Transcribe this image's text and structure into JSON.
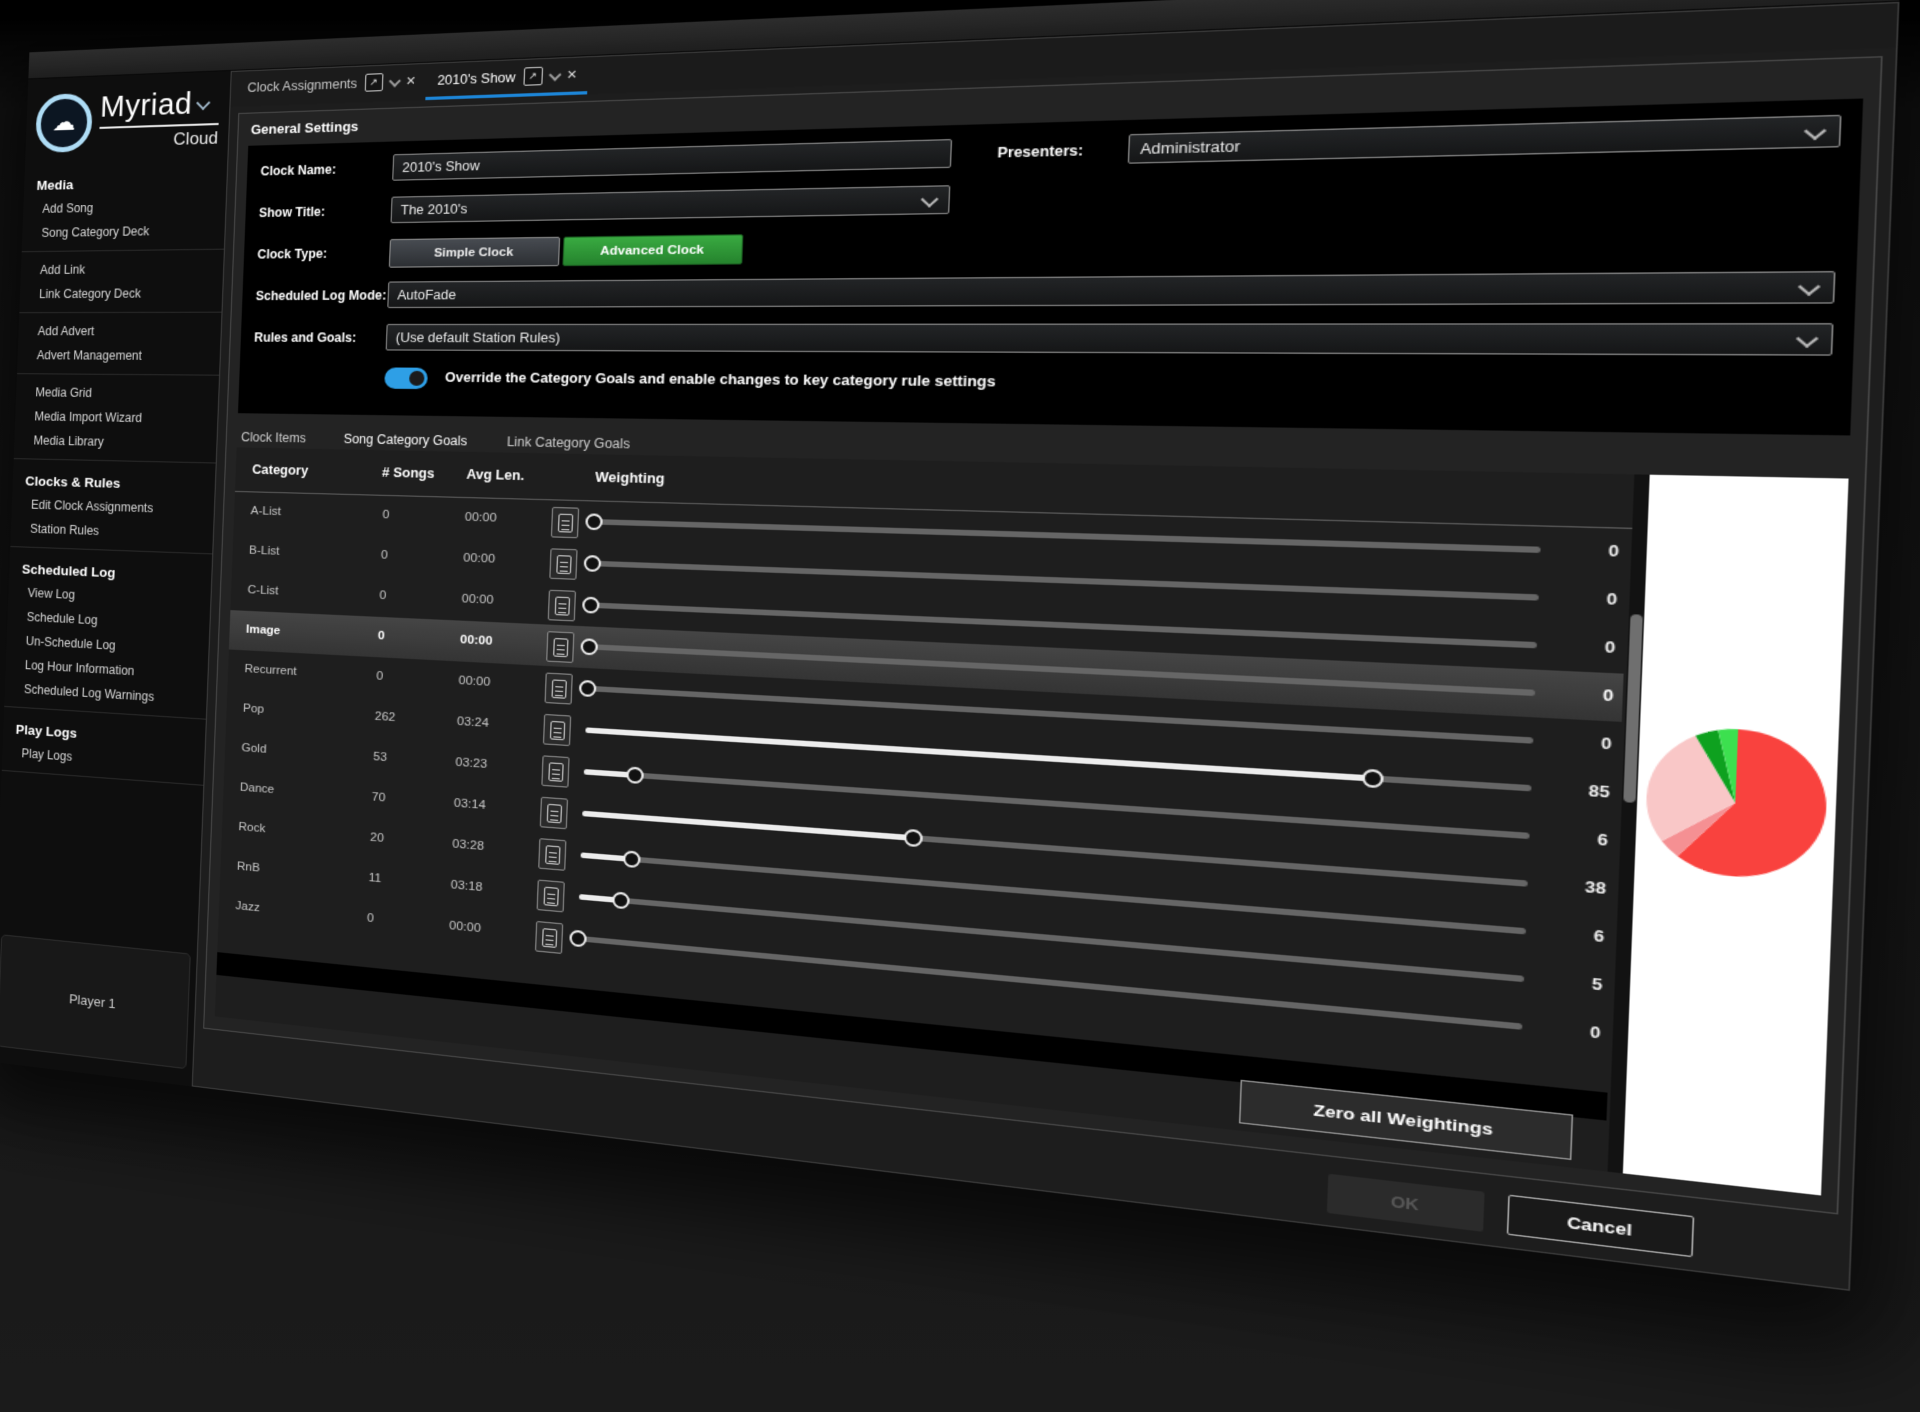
{
  "brand": {
    "name": "Myriad",
    "sub": "Cloud"
  },
  "icons": {
    "close": "×",
    "popout": "↗",
    "logo_cloud": "☁"
  },
  "sidebar": {
    "sections": [
      {
        "heading": "Media",
        "groups": [
          [
            "Add Song",
            "Song Category Deck"
          ],
          [
            "Add Link",
            "Link Category Deck"
          ],
          [
            "Add Advert",
            "Advert Management"
          ],
          [
            "Media Grid",
            "Media Import Wizard",
            "Media Library"
          ]
        ]
      },
      {
        "heading": "Clocks & Rules",
        "groups": [
          [
            "Edit Clock Assignments",
            "Station Rules"
          ]
        ]
      },
      {
        "heading": "Scheduled Log",
        "groups": [
          [
            "View Log",
            "Schedule Log",
            "Un-Schedule Log",
            "Log Hour Information",
            "Scheduled Log Warnings"
          ]
        ]
      },
      {
        "heading": "Play Logs",
        "groups": [
          [
            "Play Logs"
          ]
        ]
      }
    ],
    "player_label": "Player 1"
  },
  "tabs": [
    {
      "label": "Clock Assignments"
    },
    {
      "label": "2010's Show"
    }
  ],
  "general": {
    "title": "General Settings",
    "clock_name_label": "Clock Name:",
    "clock_name": "2010's Show",
    "presenters_label": "Presenters:",
    "presenters": "Administrator",
    "show_title_label": "Show Title:",
    "show_title": "The 2010's",
    "clock_type_label": "Clock Type:",
    "simple_clock": "Simple Clock",
    "advanced_clock": "Advanced Clock",
    "log_mode_label": "Scheduled Log Mode:",
    "log_mode": "AutoFade",
    "rules_label": "Rules and Goals:",
    "rules": "(Use default Station Rules)",
    "override_label": "Override the Category Goals and enable changes to key category rule settings",
    "override_on": true
  },
  "subtabs": [
    {
      "label": "Clock Items"
    },
    {
      "label": "Song Category Goals",
      "active": true
    },
    {
      "label": "Link Category Goals"
    }
  ],
  "goals": {
    "columns": [
      "Category",
      "# Songs",
      "Avg Len.",
      "Weighting"
    ],
    "rows": [
      {
        "category": "A-List",
        "songs": "0",
        "avg": "00:00",
        "weight": 0
      },
      {
        "category": "B-List",
        "songs": "0",
        "avg": "00:00",
        "weight": 0
      },
      {
        "category": "C-List",
        "songs": "0",
        "avg": "00:00",
        "weight": 0
      },
      {
        "category": "Image",
        "songs": "0",
        "avg": "00:00",
        "weight": 0,
        "selected": true
      },
      {
        "category": "Recurrent",
        "songs": "0",
        "avg": "00:00",
        "weight": 0
      },
      {
        "category": "Pop",
        "songs": "262",
        "avg": "03:24",
        "weight": 85
      },
      {
        "category": "Gold",
        "songs": "53",
        "avg": "03:23",
        "weight": 6
      },
      {
        "category": "Dance",
        "songs": "70",
        "avg": "03:14",
        "weight": 38
      },
      {
        "category": "Rock",
        "songs": "20",
        "avg": "03:28",
        "weight": 6
      },
      {
        "category": "RnB",
        "songs": "11",
        "avg": "03:18",
        "weight": 5
      },
      {
        "category": "Jazz",
        "songs": "0",
        "avg": "00:00",
        "weight": 0
      }
    ],
    "zero_button": "Zero all Weightings"
  },
  "footer": {
    "ok": "OK",
    "cancel": "Cancel"
  },
  "chart_data": {
    "type": "pie",
    "categories": [
      "Pop",
      "Gold",
      "Dance",
      "Rock",
      "RnB"
    ],
    "values": [
      85,
      6,
      38,
      6,
      5
    ],
    "colors": [
      "#f9423e",
      "#f59093",
      "#f9c7c7",
      "#0ea11f",
      "#3ce04f"
    ],
    "start_angle_deg": -90,
    "direction": "clockwise",
    "legend": false
  },
  "colors": {
    "accent_blue": "#1d86d8",
    "toggle_blue": "#2e9fe6",
    "advanced_green": "#2e9c35",
    "selected_row": "#3a3a3a"
  }
}
